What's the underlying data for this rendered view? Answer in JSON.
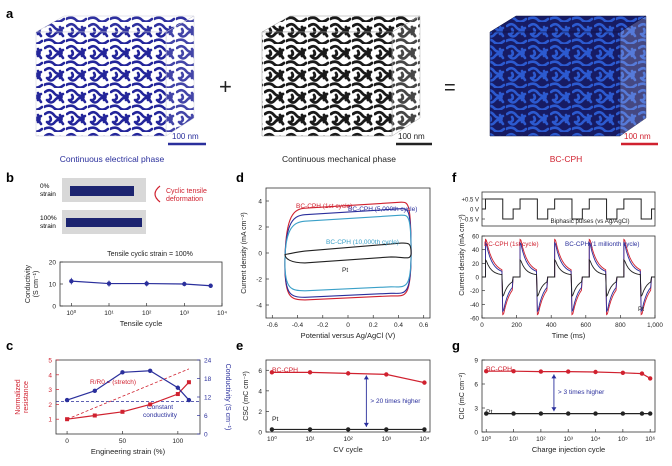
{
  "colors": {
    "blue": "#2a2f9c",
    "red": "#d0212f",
    "black": "#222222",
    "dark": "#1e1e1e",
    "mid": "#2b6fc0",
    "teal": "#3aa0c8",
    "axis": "#333333"
  },
  "panel_a": {
    "letter": "a",
    "plus": "+",
    "equals": "=",
    "cubes": [
      {
        "name": "electrical",
        "caption": "Continuous electrical phase",
        "scale": "100 nm",
        "color": "#2a2f9c",
        "bg": "#ffffff",
        "fg": "#23259a",
        "caption_color": "#2a2f9c",
        "scale_color": "#2a2f9c"
      },
      {
        "name": "mechanical",
        "caption": "Continuous mechanical phase",
        "scale": "100 nm",
        "color": "#222222",
        "bg": "#ffffff",
        "fg": "#1e1e1e",
        "caption_color": "#222222",
        "scale_color": "#222222"
      },
      {
        "name": "bccph",
        "caption": "BC-CPH",
        "scale": "100 nm",
        "color": "#d0212f",
        "bg": "#1b1f6e",
        "fg": "#2a55c8",
        "caption_color": "#d0212f",
        "scale_color": "#d0212f"
      }
    ]
  },
  "panel_b": {
    "letter": "b",
    "photo_labels": [
      "0%\nstrain",
      "100%\nstrain"
    ],
    "photo_label_0": "0%",
    "photo_label_0b": "strain",
    "photo_label_1": "100%",
    "photo_label_1b": "strain",
    "annotation": "Cyclic tensile",
    "annotation2": "deformation",
    "chart_note": "Tensile cyclic strain = 100%"
  },
  "panel_c": {
    "letter": "c",
    "note_left": "R/R",
    "note_left_sub": "0",
    "note_right": "= (stretch)",
    "note2": "Constant",
    "note3": "conductivity"
  },
  "panel_d": {
    "letter": "d"
  },
  "panel_e": {
    "letter": "e",
    "annotation": "> 20 times higher"
  },
  "panel_f": {
    "letter": "f",
    "pulse_label": "Biphasic pulses (vs Ag/AgCl)",
    "pulse_ticks": [
      "+0.5 V",
      "0 V",
      "−0.5 V"
    ]
  },
  "panel_g": {
    "letter": "g",
    "annotation": "> 3 times higher"
  },
  "chart_data": [
    {
      "id": "b",
      "type": "line",
      "xscale": "log",
      "xlabel": "Tensile cycle",
      "ylabel": "Conductivity (S cm⁻¹)",
      "xlim": [
        0.5,
        10000
      ],
      "ylim": [
        0,
        20
      ],
      "yticks": [
        0,
        10,
        20
      ],
      "xticklabels": [
        "10⁰",
        "10¹",
        "10²",
        "10³",
        "10⁴"
      ],
      "series": [
        {
          "x": [
            1,
            10,
            100,
            1000,
            5000
          ],
          "y": [
            11.3,
            10.2,
            10.2,
            10.0,
            9.2
          ],
          "err": [
            1.5,
            1.4,
            1.3,
            1.0,
            0.9
          ]
        }
      ]
    },
    {
      "id": "c",
      "type": "line",
      "xlabel": "Engineering strain (%)",
      "ylabel": "Normalized resistance",
      "y2label": "Conductivity (S cm⁻¹)",
      "xlim": [
        -10,
        120
      ],
      "ylim": [
        0,
        5
      ],
      "y2lim": [
        0,
        24
      ],
      "xticks": [
        0,
        50,
        100
      ],
      "yticks": [
        0,
        1,
        2,
        3,
        4,
        5
      ],
      "y2ticks": [
        0,
        6,
        12,
        18,
        24
      ],
      "series": [
        {
          "axis": "left",
          "x": [
            0,
            25,
            50,
            75,
            100,
            110
          ],
          "y": [
            1.0,
            1.25,
            1.5,
            2.0,
            2.7,
            3.5
          ]
        },
        {
          "axis": "right",
          "x": [
            0,
            25,
            50,
            75,
            100,
            110
          ],
          "y": [
            11,
            14,
            20,
            20.5,
            15,
            11
          ]
        }
      ],
      "dashed": {
        "ideal": "R/R0 = (stretch)2",
        "ideal_x": [
          0,
          110
        ],
        "ideal_y": [
          1,
          4.4
        ],
        "constant_y": 10.5
      }
    },
    {
      "id": "d",
      "type": "line",
      "xlabel": "Potential versus Ag/AgCl (V)",
      "ylabel": "Current density (mA cm⁻²)",
      "xlim": [
        -0.65,
        0.65
      ],
      "ylim": [
        -5,
        5
      ],
      "xticks": [
        -0.6,
        -0.4,
        -0.2,
        0,
        0.2,
        0.4,
        0.6
      ],
      "yticks": [
        -4,
        -2,
        0,
        2,
        4
      ],
      "series": [
        {
          "name": "BC-CPH (1st cycle)",
          "top": 3.6,
          "bottom": -3.3
        },
        {
          "name": "BC-CPH (5,000th cycle)",
          "top": 3.1,
          "bottom": -3.1
        },
        {
          "name": "BC-CPH (10,000th cycle)",
          "top": 2.6,
          "bottom": -2.6
        },
        {
          "name": "Pt",
          "top": 0.3,
          "bottom": -0.3
        }
      ]
    },
    {
      "id": "e",
      "type": "line",
      "xscale": "log",
      "xlabel": "CV cycle",
      "ylabel": "CSC (mC cm⁻²)",
      "xlim": [
        0.7,
        14000
      ],
      "ylim": [
        0,
        7
      ],
      "yticks": [
        0,
        2,
        4,
        6
      ],
      "xticklabels": [
        "10⁰",
        "10¹",
        "10²",
        "10³",
        "10⁴"
      ],
      "series": [
        {
          "name": "BC-CPH",
          "x": [
            1,
            10,
            100,
            1000,
            10000
          ],
          "y": [
            5.8,
            5.8,
            5.7,
            5.6,
            4.8
          ]
        },
        {
          "name": "Pt",
          "x": [
            1,
            10,
            100,
            1000,
            10000
          ],
          "y": [
            0.25,
            0.25,
            0.25,
            0.25,
            0.25
          ]
        }
      ]
    },
    {
      "id": "f",
      "type": "line",
      "xlabel": "Time (ms)",
      "ylabel": "Current density (mA cm⁻²)",
      "xlim": [
        0,
        1000
      ],
      "ylim": [
        -60,
        60
      ],
      "xticks": [
        0,
        200,
        400,
        600,
        800,
        1000
      ],
      "xticklabels": [
        "0",
        "200",
        "400",
        "600",
        "800",
        "1,000"
      ],
      "yticks": [
        -60,
        -40,
        -20,
        0,
        20,
        40,
        60
      ],
      "series": [
        {
          "name": "BC-CPH (1st cycle)"
        },
        {
          "name": "BC-CPH (1 millionth cycle)"
        },
        {
          "name": "Pt"
        }
      ]
    },
    {
      "id": "g",
      "type": "line",
      "xscale": "log",
      "xlabel": "Charge injection cycle",
      "ylabel": "CIC (mC cm⁻²)",
      "xlim": [
        0.7,
        1500000
      ],
      "ylim": [
        0,
        9
      ],
      "yticks": [
        0,
        3,
        6,
        9
      ],
      "xticklabels": [
        "10⁰",
        "10¹",
        "10²",
        "10³",
        "10⁴",
        "10⁵",
        "10⁶"
      ],
      "series": [
        {
          "name": "BC-CPH",
          "x": [
            1,
            10,
            100,
            1000,
            10000,
            100000,
            500000,
            1000000
          ],
          "y": [
            7.6,
            7.6,
            7.55,
            7.55,
            7.5,
            7.4,
            7.3,
            6.7
          ]
        },
        {
          "name": "Pt",
          "x": [
            1,
            10,
            100,
            1000,
            10000,
            100000,
            500000,
            1000000
          ],
          "y": [
            2.3,
            2.3,
            2.3,
            2.3,
            2.3,
            2.3,
            2.3,
            2.3
          ]
        }
      ]
    }
  ]
}
